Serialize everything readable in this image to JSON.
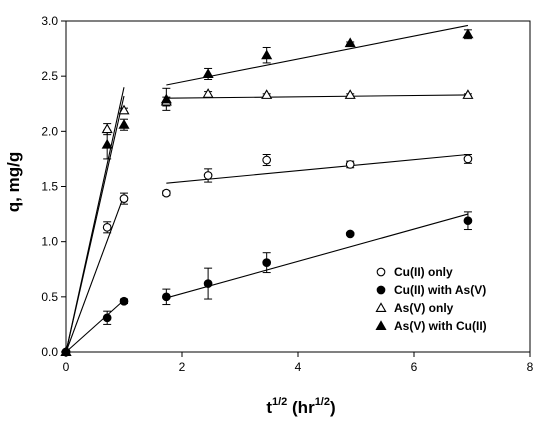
{
  "chart_data": {
    "type": "scatter",
    "title": "",
    "xlabel": {
      "base": "t",
      "sup1": "1/2",
      "mid": " (hr",
      "sup2": "1/2",
      "end": ")"
    },
    "ylabel": "q, mg/g",
    "xlim": [
      0,
      8
    ],
    "ylim": [
      0,
      3.0
    ],
    "x_ticks": [
      0,
      2,
      4,
      6,
      8
    ],
    "y_ticks": [
      0.0,
      0.5,
      1.0,
      1.5,
      2.0,
      2.5,
      3.0
    ],
    "x_tick_labels": [
      "0",
      "2",
      "4",
      "6",
      "8"
    ],
    "y_tick_labels": [
      "0.0",
      "0.5",
      "1.0",
      "1.5",
      "2.0",
      "2.5",
      "3.0"
    ],
    "grid": false,
    "legend_position": "bottom-right",
    "series": [
      {
        "name": "Cu(II) only",
        "marker": "circle-open",
        "points": [
          {
            "x": 0,
            "y": 0,
            "err": 0
          },
          {
            "x": 0.71,
            "y": 1.13,
            "err": 0.05
          },
          {
            "x": 1.0,
            "y": 1.39,
            "err": 0.05
          },
          {
            "x": 1.73,
            "y": 1.44,
            "err": 0.02
          },
          {
            "x": 2.45,
            "y": 1.6,
            "err": 0.06
          },
          {
            "x": 3.46,
            "y": 1.74,
            "err": 0.05
          },
          {
            "x": 4.9,
            "y": 1.7,
            "err": 0.03
          },
          {
            "x": 6.93,
            "y": 1.75,
            "err": 0.04
          }
        ],
        "fit_lines": [
          [
            [
              0,
              0
            ],
            [
              1.0,
              1.42
            ]
          ],
          [
            [
              1.73,
              1.53
            ],
            [
              6.93,
              1.79
            ]
          ]
        ]
      },
      {
        "name": "Cu(II) with As(V)",
        "marker": "circle-filled",
        "points": [
          {
            "x": 0,
            "y": 0,
            "err": 0
          },
          {
            "x": 0.71,
            "y": 0.31,
            "err": 0.06
          },
          {
            "x": 1.0,
            "y": 0.46,
            "err": 0.02
          },
          {
            "x": 1.73,
            "y": 0.5,
            "err": 0.07
          },
          {
            "x": 2.45,
            "y": 0.62,
            "err": 0.14
          },
          {
            "x": 3.46,
            "y": 0.81,
            "err": 0.09
          },
          {
            "x": 4.9,
            "y": 1.07,
            "err": 0.01
          },
          {
            "x": 6.93,
            "y": 1.19,
            "err": 0.08
          }
        ],
        "fit_lines": [
          [
            [
              0,
              0
            ],
            [
              1.0,
              0.47
            ]
          ],
          [
            [
              1.73,
              0.49
            ],
            [
              6.93,
              1.25
            ]
          ]
        ]
      },
      {
        "name": "As(V) only",
        "marker": "triangle-open",
        "points": [
          {
            "x": 0,
            "y": 0,
            "err": 0
          },
          {
            "x": 0.71,
            "y": 2.02,
            "err": 0.05
          },
          {
            "x": 1.0,
            "y": 2.19,
            "err": 0.02
          },
          {
            "x": 1.73,
            "y": 2.27,
            "err": 0.04
          },
          {
            "x": 2.45,
            "y": 2.34,
            "err": 0.02
          },
          {
            "x": 3.46,
            "y": 2.33,
            "err": 0.01
          },
          {
            "x": 4.9,
            "y": 2.33,
            "err": 0.01
          },
          {
            "x": 6.93,
            "y": 2.33,
            "err": 0.01
          }
        ],
        "fit_lines": [
          [
            [
              0,
              0
            ],
            [
              1.0,
              2.32
            ]
          ],
          [
            [
              1.73,
              2.3
            ],
            [
              6.93,
              2.33
            ]
          ]
        ]
      },
      {
        "name": "As(V) with Cu(II)",
        "marker": "triangle-filled",
        "points": [
          {
            "x": 0,
            "y": 0,
            "err": 0
          },
          {
            "x": 0.71,
            "y": 1.88,
            "err": 0.13
          },
          {
            "x": 1.0,
            "y": 2.06,
            "err": 0.05
          },
          {
            "x": 1.73,
            "y": 2.29,
            "err": 0.1
          },
          {
            "x": 2.45,
            "y": 2.52,
            "err": 0.05
          },
          {
            "x": 3.46,
            "y": 2.69,
            "err": 0.07
          },
          {
            "x": 4.9,
            "y": 2.8,
            "err": 0.01
          },
          {
            "x": 6.93,
            "y": 2.88,
            "err": 0.04
          }
        ],
        "fit_lines": [
          [
            [
              0,
              0
            ],
            [
              1.0,
              2.4
            ]
          ],
          [
            [
              1.73,
              2.42
            ],
            [
              6.93,
              2.96
            ]
          ]
        ]
      }
    ]
  }
}
